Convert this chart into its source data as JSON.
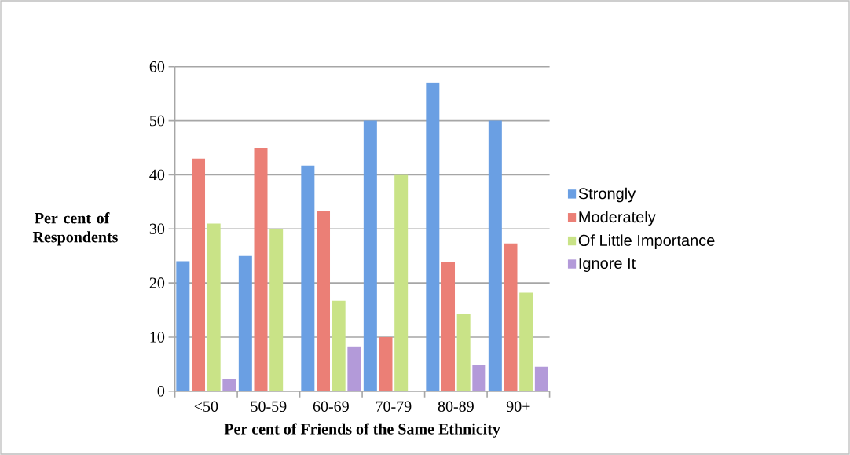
{
  "chart_data": {
    "type": "bar",
    "xlabel": "Per cent of Friends of the Same Ethnicity",
    "ylabel": "Per cent of Respondents",
    "categories": [
      "<50",
      "50-59",
      "60-69",
      "70-79",
      "80-89",
      "90+"
    ],
    "series": [
      {
        "name": "Strongly",
        "color": "#6a9fe3",
        "values": [
          24,
          25,
          41.7,
          50,
          57.1,
          50
        ]
      },
      {
        "name": "Moderately",
        "color": "#eb7f76",
        "values": [
          43,
          45,
          33.3,
          10,
          23.8,
          27.3
        ]
      },
      {
        "name": "Of Little Importance",
        "color": "#c9e387",
        "values": [
          31,
          30,
          16.7,
          40,
          14.3,
          18.2
        ]
      },
      {
        "name": "Ignore It",
        "color": "#b39ad9",
        "values": [
          2.3,
          0,
          8.3,
          0,
          4.8,
          4.5
        ]
      }
    ],
    "ylim": [
      0,
      60
    ],
    "yticks": [
      0,
      10,
      20,
      30,
      40,
      50,
      60
    ],
    "grid": "y",
    "legend": "right"
  }
}
